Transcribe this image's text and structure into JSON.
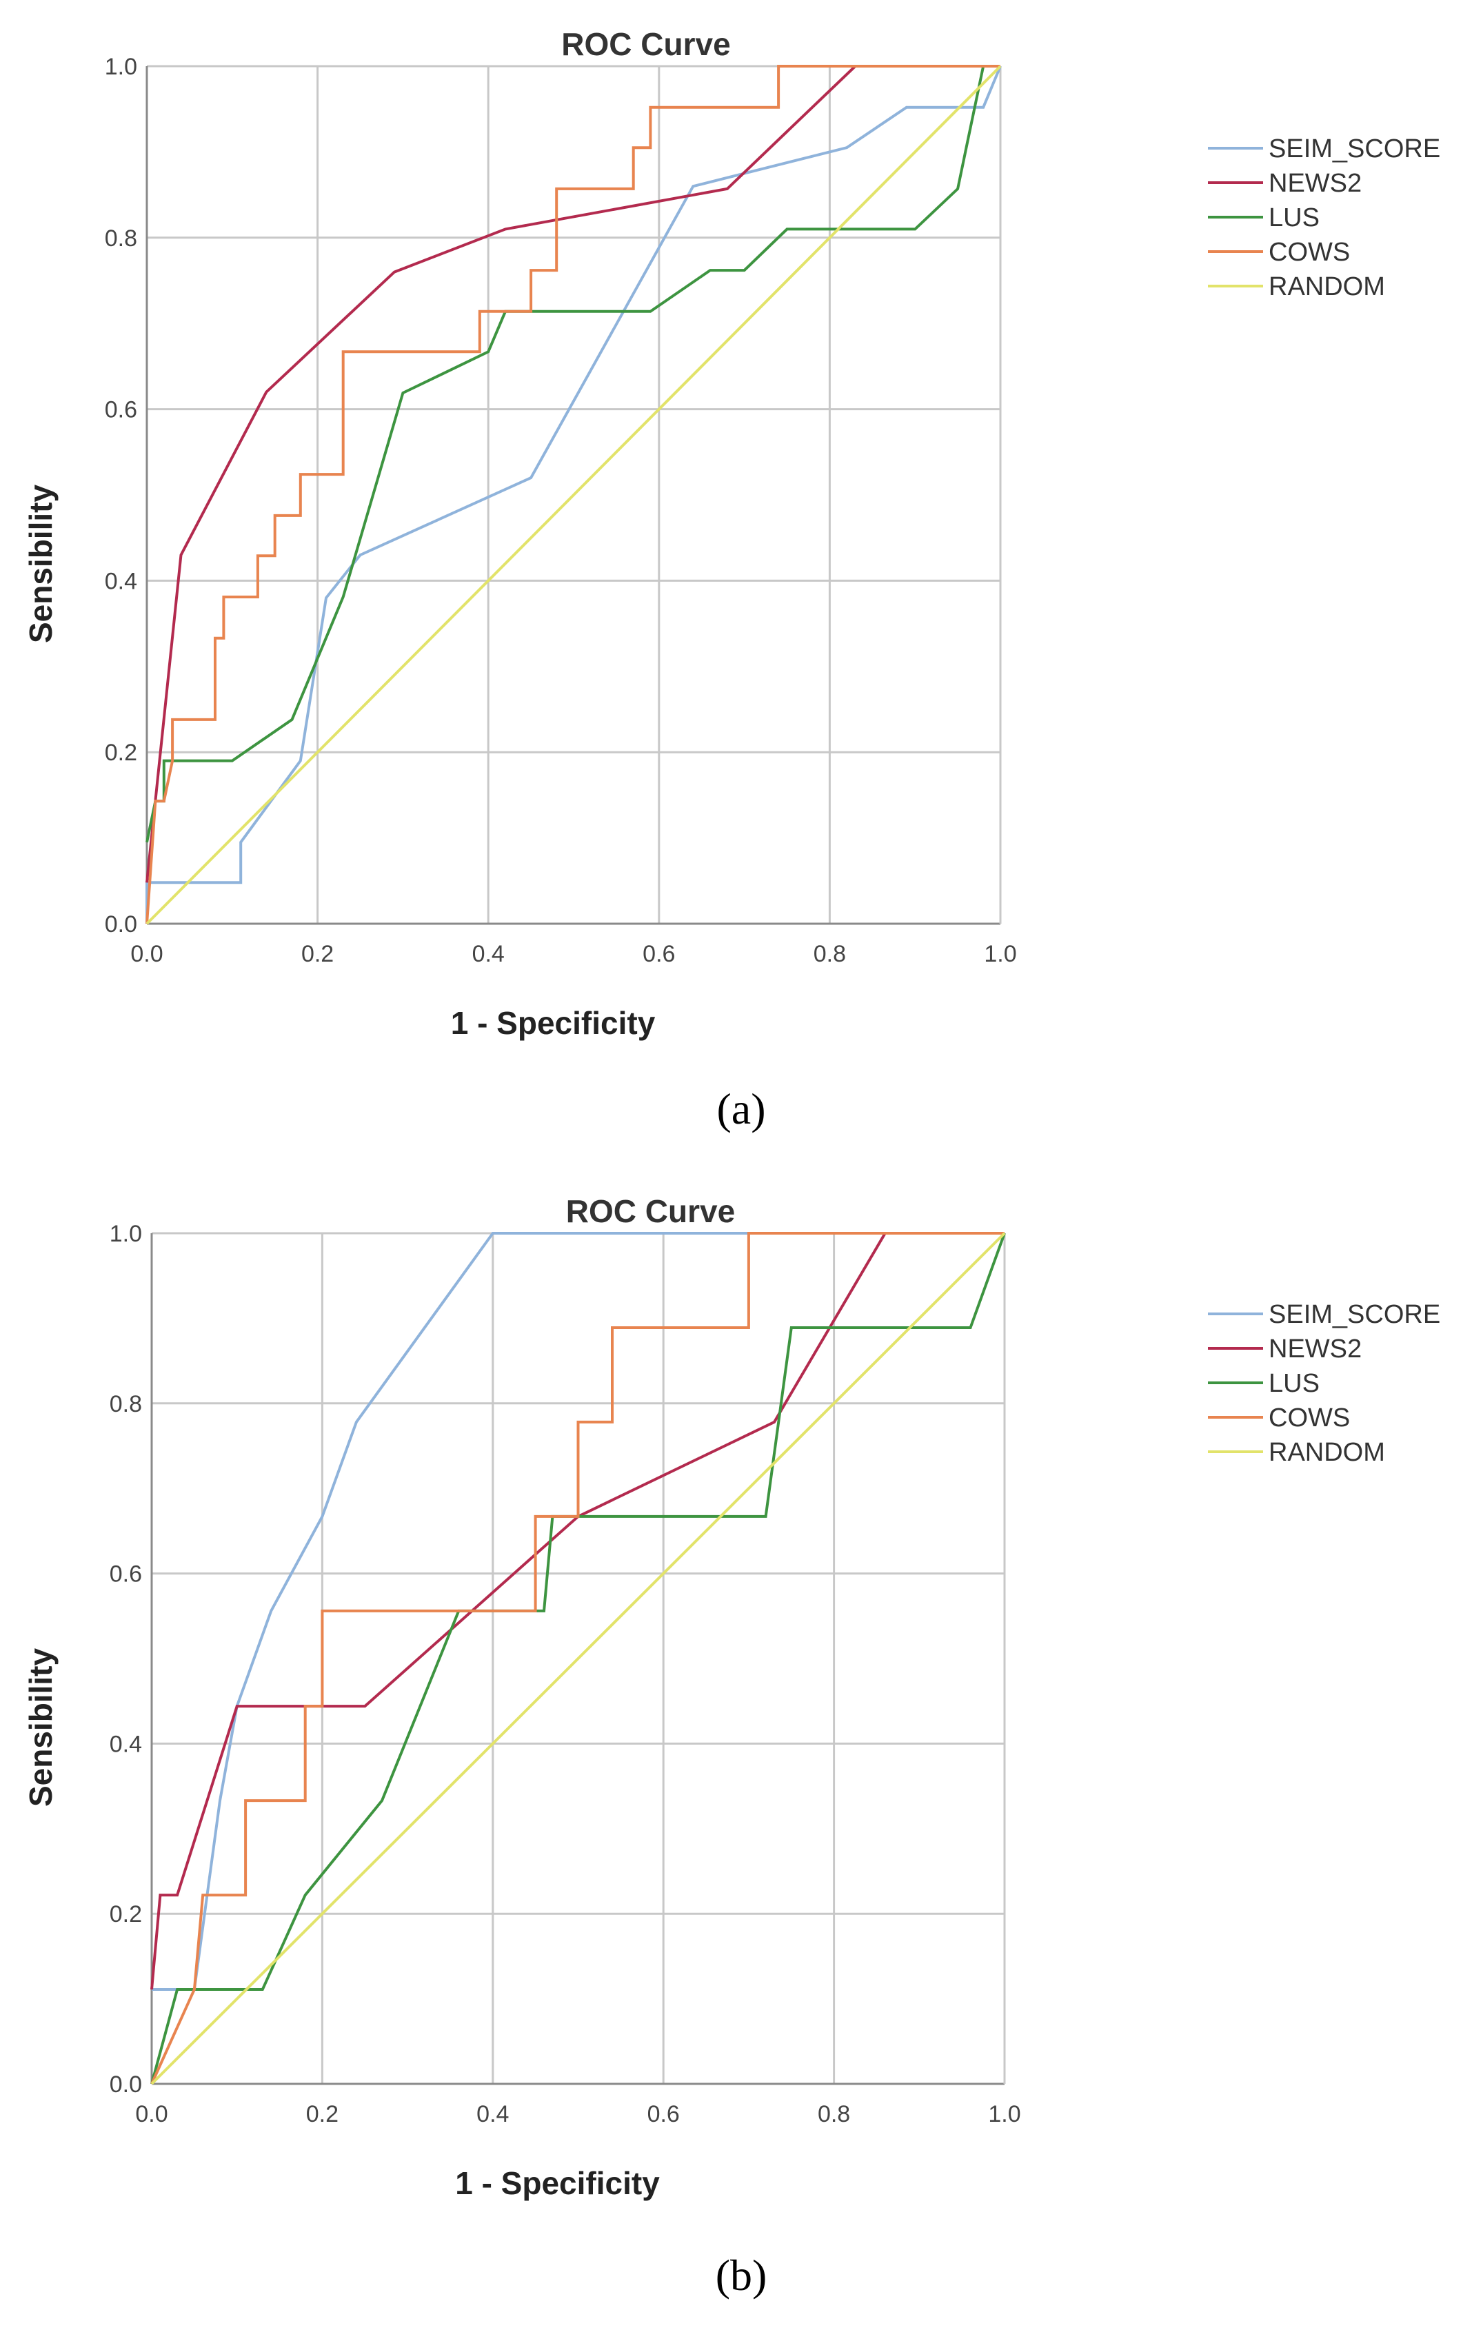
{
  "chart_data": [
    {
      "type": "line",
      "panel_label": "(a)",
      "title": "ROC Curve",
      "xlabel": "1 - Specificity",
      "ylabel": "Sensibility",
      "xlim": [
        0,
        1
      ],
      "ylim": [
        0,
        1
      ],
      "x_ticks": [
        "0.0",
        "0.2",
        "0.4",
        "0.6",
        "0.8",
        "1.0"
      ],
      "y_ticks": [
        "0.0",
        "0.2",
        "0.4",
        "0.6",
        "0.8",
        "1.0"
      ],
      "grid": true,
      "legend_position": "right",
      "series": [
        {
          "name": "SEIM_SCORE",
          "color": "#8fb3db",
          "x": [
            0,
            0,
            0.11,
            0.11,
            0.18,
            0.21,
            0.25,
            0.45,
            0.64,
            0.82,
            0.89,
            0.98,
            1.0
          ],
          "y": [
            0,
            0.048,
            0.048,
            0.095,
            0.19,
            0.38,
            0.43,
            0.52,
            0.86,
            0.905,
            0.952,
            0.952,
            1.0
          ]
        },
        {
          "name": "NEWS2",
          "color": "#b32a4e",
          "x": [
            0,
            0.04,
            0.14,
            0.29,
            0.42,
            0.68,
            0.83,
            1.0
          ],
          "y": [
            0.048,
            0.43,
            0.62,
            0.76,
            0.81,
            0.857,
            1.0,
            1.0
          ]
        },
        {
          "name": "LUS",
          "color": "#3d9440",
          "x": [
            0,
            0.01,
            0.02,
            0.02,
            0.1,
            0.17,
            0.23,
            0.3,
            0.4,
            0.42,
            0.59,
            0.66,
            0.7,
            0.75,
            0.9,
            0.95,
            0.96,
            0.98,
            1.0
          ],
          "y": [
            0.095,
            0.143,
            0.143,
            0.19,
            0.19,
            0.238,
            0.381,
            0.619,
            0.667,
            0.714,
            0.714,
            0.762,
            0.762,
            0.81,
            0.81,
            0.857,
            0.905,
            1.0,
            1.0
          ]
        },
        {
          "name": "COWS",
          "color": "#e8844f",
          "x": [
            0,
            0.01,
            0.02,
            0.03,
            0.03,
            0.08,
            0.08,
            0.09,
            0.09,
            0.13,
            0.13,
            0.15,
            0.15,
            0.18,
            0.18,
            0.23,
            0.23,
            0.39,
            0.39,
            0.45,
            0.45,
            0.48,
            0.48,
            0.57,
            0.57,
            0.59,
            0.59,
            0.74,
            0.74,
            1.0
          ],
          "y": [
            0,
            0.143,
            0.143,
            0.19,
            0.238,
            0.238,
            0.333,
            0.333,
            0.381,
            0.381,
            0.429,
            0.429,
            0.476,
            0.476,
            0.524,
            0.524,
            0.667,
            0.667,
            0.714,
            0.714,
            0.762,
            0.762,
            0.857,
            0.857,
            0.905,
            0.905,
            0.952,
            0.952,
            1.0,
            1.0
          ]
        },
        {
          "name": "RANDOM",
          "color": "#e2e36a",
          "x": [
            0,
            1
          ],
          "y": [
            0,
            1
          ]
        }
      ]
    },
    {
      "type": "line",
      "panel_label": "(b)",
      "title": "ROC Curve",
      "xlabel": "1 - Specificity",
      "ylabel": "Sensibility",
      "xlim": [
        0,
        1
      ],
      "ylim": [
        0,
        1
      ],
      "x_ticks": [
        "0.0",
        "0.2",
        "0.4",
        "0.6",
        "0.8",
        "1.0"
      ],
      "y_ticks": [
        "0.0",
        "0.2",
        "0.4",
        "0.6",
        "0.8",
        "1.0"
      ],
      "grid": true,
      "legend_position": "right",
      "series": [
        {
          "name": "SEIM_SCORE",
          "color": "#8fb3db",
          "x": [
            0,
            0.01,
            0.03,
            0.05,
            0.08,
            0.1,
            0.14,
            0.2,
            0.24,
            0.4,
            1.0
          ],
          "y": [
            0.111,
            0.111,
            0.111,
            0.111,
            0.333,
            0.444,
            0.556,
            0.667,
            0.778,
            1.0,
            1.0
          ]
        },
        {
          "name": "NEWS2",
          "color": "#b32a4e",
          "x": [
            0,
            0.01,
            0.03,
            0.1,
            0.25,
            0.5,
            0.73,
            0.86,
            1.0
          ],
          "y": [
            0.111,
            0.222,
            0.222,
            0.444,
            0.444,
            0.667,
            0.778,
            1.0,
            1.0
          ]
        },
        {
          "name": "LUS",
          "color": "#3d9440",
          "x": [
            0,
            0.03,
            0.04,
            0.13,
            0.18,
            0.27,
            0.36,
            0.46,
            0.47,
            0.72,
            0.75,
            0.96,
            1.0
          ],
          "y": [
            0,
            0.111,
            0.111,
            0.111,
            0.222,
            0.333,
            0.556,
            0.556,
            0.667,
            0.667,
            0.889,
            0.889,
            1.0
          ]
        },
        {
          "name": "COWS",
          "color": "#e8844f",
          "x": [
            0,
            0.05,
            0.05,
            0.06,
            0.06,
            0.11,
            0.11,
            0.18,
            0.18,
            0.2,
            0.2,
            0.45,
            0.45,
            0.5,
            0.5,
            0.54,
            0.54,
            0.7,
            0.7,
            1.0
          ],
          "y": [
            0,
            0.111,
            0.111,
            0.222,
            0.222,
            0.222,
            0.333,
            0.333,
            0.444,
            0.444,
            0.556,
            0.556,
            0.667,
            0.667,
            0.778,
            0.778,
            0.889,
            0.889,
            1.0,
            1.0
          ]
        },
        {
          "name": "RANDOM",
          "color": "#e2e36a",
          "x": [
            0,
            1
          ],
          "y": [
            0,
            1
          ]
        }
      ]
    }
  ]
}
